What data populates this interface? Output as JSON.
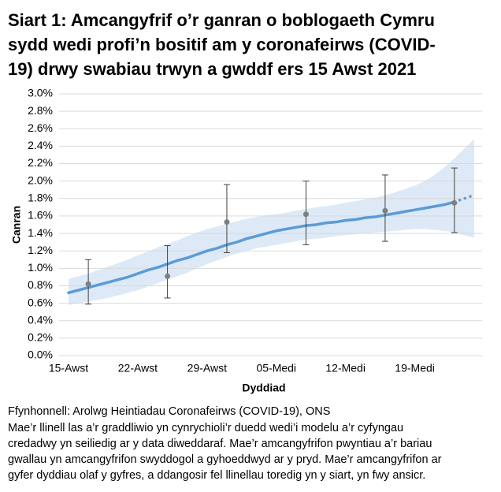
{
  "chart_data": {
    "type": "line",
    "title": [
      "Siart 1: Amcangyfrif o’r ganran o boblogaeth Cymru",
      "sydd wedi profi’n bositif am y coronafeirws (COVID-",
      "19) drwy swabiau trwyn a gwddf ers 15 Awst 2021"
    ],
    "x_label": "Dyddiad",
    "y_label": "Canran",
    "categories": [
      "15-Awst",
      null,
      null,
      null,
      null,
      null,
      null,
      "22-Awst",
      null,
      null,
      null,
      null,
      null,
      null,
      "29-Awst",
      null,
      null,
      null,
      null,
      null,
      null,
      "05-Medi",
      null,
      null,
      null,
      null,
      null,
      null,
      "12-Medi",
      null,
      null,
      null,
      null,
      null,
      null,
      "19-Medi",
      null,
      null,
      null,
      null,
      null,
      null
    ],
    "ylim": [
      0,
      3
    ],
    "yticks": [
      {
        "value": 0,
        "label": "0.0%"
      },
      {
        "value": 0.2,
        "label": "0.2%"
      },
      {
        "value": 0.4,
        "label": "0.4%"
      },
      {
        "value": 0.6,
        "label": "0.6%"
      },
      {
        "value": 0.8,
        "label": "0.8%"
      },
      {
        "value": 1.0,
        "label": "1.0%"
      },
      {
        "value": 1.2,
        "label": "1.2%"
      },
      {
        "value": 1.4,
        "label": "1.4%"
      },
      {
        "value": 1.6,
        "label": "1.6%"
      },
      {
        "value": 1.8,
        "label": "1.8%"
      },
      {
        "value": 2.0,
        "label": "2.0%"
      },
      {
        "value": 2.2,
        "label": "2.2%"
      },
      {
        "value": 2.4,
        "label": "2.4%"
      },
      {
        "value": 2.6,
        "label": "2.6%"
      },
      {
        "value": 2.8,
        "label": "2.8%"
      },
      {
        "value": 3.0,
        "label": "3.0%"
      }
    ],
    "grid": true,
    "band": {
      "color": "#dde9f6",
      "lower": [
        0.58,
        0.6,
        0.62,
        0.64,
        0.66,
        0.69,
        0.72,
        0.75,
        0.79,
        0.83,
        0.87,
        0.91,
        0.95,
        1.0,
        1.05,
        1.09,
        1.13,
        1.17,
        1.2,
        1.23,
        1.25,
        1.27,
        1.29,
        1.31,
        1.33,
        1.34,
        1.35,
        1.37,
        1.38,
        1.39,
        1.4,
        1.41,
        1.42,
        1.43,
        1.44,
        1.45,
        1.45,
        1.44,
        1.43,
        1.41,
        1.38,
        1.35
      ],
      "upper": [
        0.88,
        0.91,
        0.94,
        0.98,
        1.02,
        1.06,
        1.1,
        1.15,
        1.19,
        1.24,
        1.28,
        1.32,
        1.37,
        1.41,
        1.45,
        1.48,
        1.51,
        1.54,
        1.57,
        1.59,
        1.61,
        1.62,
        1.64,
        1.66,
        1.68,
        1.7,
        1.71,
        1.73,
        1.75,
        1.77,
        1.79,
        1.81,
        1.84,
        1.87,
        1.91,
        1.95,
        2.0,
        2.07,
        2.16,
        2.26,
        2.37,
        2.48
      ]
    },
    "series": [
      {
        "color": "#5b9bd5",
        "style": "solid",
        "values": [
          0.72,
          0.75,
          0.78,
          0.81,
          0.84,
          0.87,
          0.9,
          0.94,
          0.98,
          1.01,
          1.05,
          1.09,
          1.12,
          1.16,
          1.2,
          1.23,
          1.27,
          1.3,
          1.34,
          1.37,
          1.4,
          1.43,
          1.45,
          1.47,
          1.49,
          1.5,
          1.52,
          1.53,
          1.55,
          1.56,
          1.58,
          1.59,
          1.61,
          1.63,
          1.65,
          1.67,
          1.69,
          1.71,
          1.73,
          1.76,
          null,
          null
        ]
      },
      {
        "color": "#5b9bd5",
        "style": "dotted",
        "values": [
          null,
          null,
          null,
          null,
          null,
          null,
          null,
          null,
          null,
          null,
          null,
          null,
          null,
          null,
          null,
          null,
          null,
          null,
          null,
          null,
          null,
          null,
          null,
          null,
          null,
          null,
          null,
          null,
          null,
          null,
          null,
          null,
          null,
          null,
          null,
          null,
          null,
          null,
          null,
          1.76,
          1.8,
          1.84
        ]
      }
    ],
    "estimates": {
      "color": "#7f7f7f",
      "values": [
        null,
        null,
        0.82,
        null,
        null,
        null,
        null,
        null,
        null,
        null,
        0.91,
        null,
        null,
        null,
        null,
        null,
        1.53,
        null,
        null,
        null,
        null,
        null,
        null,
        null,
        1.62,
        null,
        null,
        null,
        null,
        null,
        null,
        null,
        1.66,
        null,
        null,
        null,
        null,
        null,
        null,
        1.75,
        null,
        null
      ],
      "lower": [
        null,
        null,
        0.59,
        null,
        null,
        null,
        null,
        null,
        null,
        null,
        0.66,
        null,
        null,
        null,
        null,
        null,
        1.18,
        null,
        null,
        null,
        null,
        null,
        null,
        null,
        1.27,
        null,
        null,
        null,
        null,
        null,
        null,
        null,
        1.31,
        null,
        null,
        null,
        null,
        null,
        null,
        1.41,
        null,
        null
      ],
      "upper": [
        null,
        null,
        1.1,
        null,
        null,
        null,
        null,
        null,
        null,
        null,
        1.26,
        null,
        null,
        null,
        null,
        null,
        1.96,
        null,
        null,
        null,
        null,
        null,
        null,
        null,
        2.0,
        null,
        null,
        null,
        null,
        null,
        null,
        null,
        2.07,
        null,
        null,
        null,
        null,
        null,
        null,
        2.15,
        null,
        null
      ]
    },
    "source": "Ffynhonnell: Arolwg Heintiadau Coronafeirws (COVID-19), ONS",
    "note": [
      "Mae’r llinell las a’r graddliwio yn cynrychioli’r duedd wedi’i modelu a’r cyfyngau",
      "credadwy yn seiliedig ar y data diweddaraf. Mae’r amcangyfrifon pwyntiau a’r bariau",
      "gwallau yn amcangyfrifon swyddogol a gyhoeddwyd ar y pryd. Mae’r amcangyfrifon ar",
      "gyfer dyddiau olaf y gyfres, a ddangosir fel llinellau toredig yn y siart, yn fwy ansicr."
    ]
  }
}
